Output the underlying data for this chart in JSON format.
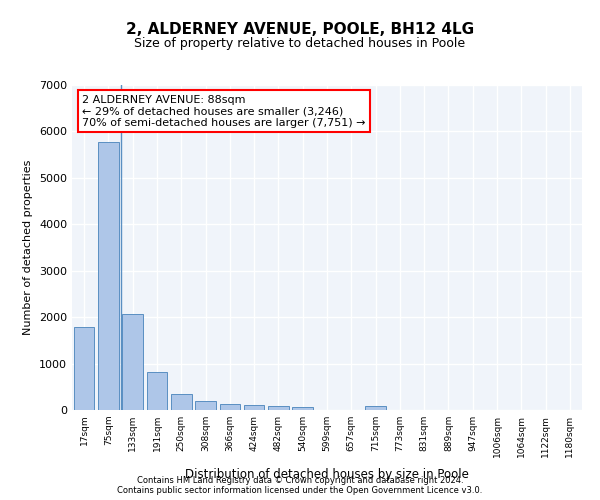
{
  "title1": "2, ALDERNEY AVENUE, POOLE, BH12 4LG",
  "title2": "Size of property relative to detached houses in Poole",
  "xlabel": "Distribution of detached houses by size in Poole",
  "ylabel": "Number of detached properties",
  "bar_labels": [
    "17sqm",
    "75sqm",
    "133sqm",
    "191sqm",
    "250sqm",
    "308sqm",
    "366sqm",
    "424sqm",
    "482sqm",
    "540sqm",
    "599sqm",
    "657sqm",
    "715sqm",
    "773sqm",
    "831sqm",
    "889sqm",
    "947sqm",
    "1006sqm",
    "1064sqm",
    "1122sqm",
    "1180sqm"
  ],
  "bar_values": [
    1780,
    5780,
    2060,
    820,
    340,
    190,
    120,
    105,
    95,
    75,
    0,
    0,
    85,
    0,
    0,
    0,
    0,
    0,
    0,
    0,
    0
  ],
  "bar_color": "#aec6e8",
  "bar_edge_color": "#5a8fc2",
  "highlight_bar_index": 1,
  "highlight_color": "#aec6e8",
  "highlight_edge_color": "#5a8fc2",
  "annotation_text": "2 ALDERNEY AVENUE: 88sqm\n← 29% of detached houses are smaller (3,246)\n70% of semi-detached houses are larger (7,751) →",
  "annotation_box_color": "white",
  "annotation_box_edge_color": "red",
  "vline_x": 1,
  "ylim": [
    0,
    7000
  ],
  "yticks": [
    0,
    1000,
    2000,
    3000,
    4000,
    5000,
    6000,
    7000
  ],
  "footer_line1": "Contains HM Land Registry data © Crown copyright and database right 2024.",
  "footer_line2": "Contains public sector information licensed under the Open Government Licence v3.0.",
  "bg_color": "#f0f4fa",
  "grid_color": "white"
}
